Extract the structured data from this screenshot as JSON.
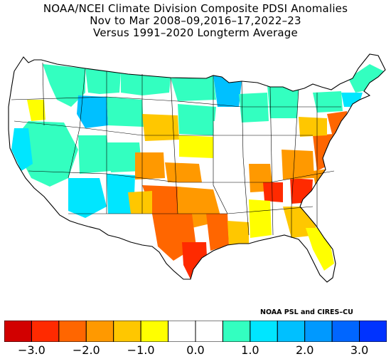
{
  "title": {
    "line1": "NOAA/NCEI Climate Division Composite PDSI Anomalies",
    "line2": "Nov to Mar  2008–09,2016–17,2022–23",
    "line3": "Versus 1991–2020 Longterm Average"
  },
  "credit": "NOAA PSL and CIRES–CU",
  "colorbar": {
    "colors": [
      "#d20000",
      "#ff2a00",
      "#ff6600",
      "#ff9900",
      "#ffc700",
      "#ffff00",
      "#ffffff",
      "#ffffff",
      "#33ffc0",
      "#00e6ff",
      "#00c0ff",
      "#0099ff",
      "#0066ff",
      "#0033ff"
    ],
    "tick_labels": [
      "−3.0",
      "−2.0",
      "−1.0",
      "0.0",
      "1.0",
      "2.0",
      "3.0"
    ]
  },
  "legend_colors": {
    "dark_red": "#d20000",
    "red": "#ff2a00",
    "orange": "#ff6600",
    "light_orange": "#ff9900",
    "amber": "#ffc700",
    "yellow": "#ffff00",
    "white": "#ffffff",
    "aquamarine": "#33ffc0",
    "cyan": "#00e6ff",
    "sky_blue": "#00c0ff",
    "blue": "#0099ff",
    "royal_blue": "#0066ff",
    "deep_blue": "#0033ff"
  }
}
